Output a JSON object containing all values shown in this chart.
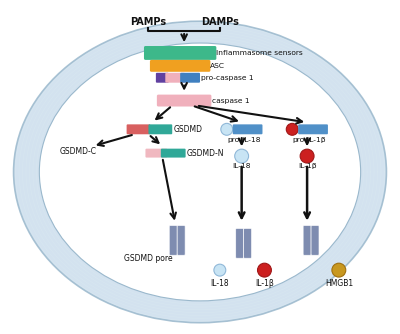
{
  "bg_color": "#ffffff",
  "cell_color": "#ccdded",
  "cell_edge_color": "#9ab8cc",
  "labels": {
    "pamps": "PAMPs",
    "damps": "DAMPs",
    "inflammasome": "Inflammasome sensors",
    "asc": "ASC",
    "pro_caspase": "pro-caspase 1",
    "caspase": "caspase 1",
    "gsdmd": "GSDMD",
    "gsdmd_c": "GSDMD-C",
    "gsdmd_n": "GSDMD-N",
    "pro_il18": "pro-IL-18",
    "il18": "IL-18",
    "pro_il1b": "pro-IL-1β",
    "il1b": "IL-1β",
    "gsdmd_pore": "GSDMD pore",
    "hmgb1": "HMGB1"
  },
  "colors": {
    "inflammasome_bar": "#3db88a",
    "asc_bar": "#f0a020",
    "pro_caspase_pink": "#f0b0bc",
    "pro_caspase_purple": "#6040a0",
    "pro_caspase_blue": "#4080c0",
    "caspase_bar": "#f0b0bc",
    "gsdmd_red": "#d86060",
    "gsdmd_teal": "#30a898",
    "gsdmd_c_pink": "#f0b8c0",
    "gsdmd_n_teal": "#30a898",
    "pro_il18_dot": "#c8e4f4",
    "pro_il18_bar": "#5090c8",
    "il18_dot": "#c8e4f4",
    "il18_dot_edge": "#90b8d8",
    "pro_il1b_dot": "#cc2020",
    "pro_il1b_bar": "#5090c8",
    "il1b_dot": "#cc2020",
    "hmgb1_dot": "#c89820",
    "pore_color": "#7080a8",
    "arrow_color": "#111111"
  }
}
